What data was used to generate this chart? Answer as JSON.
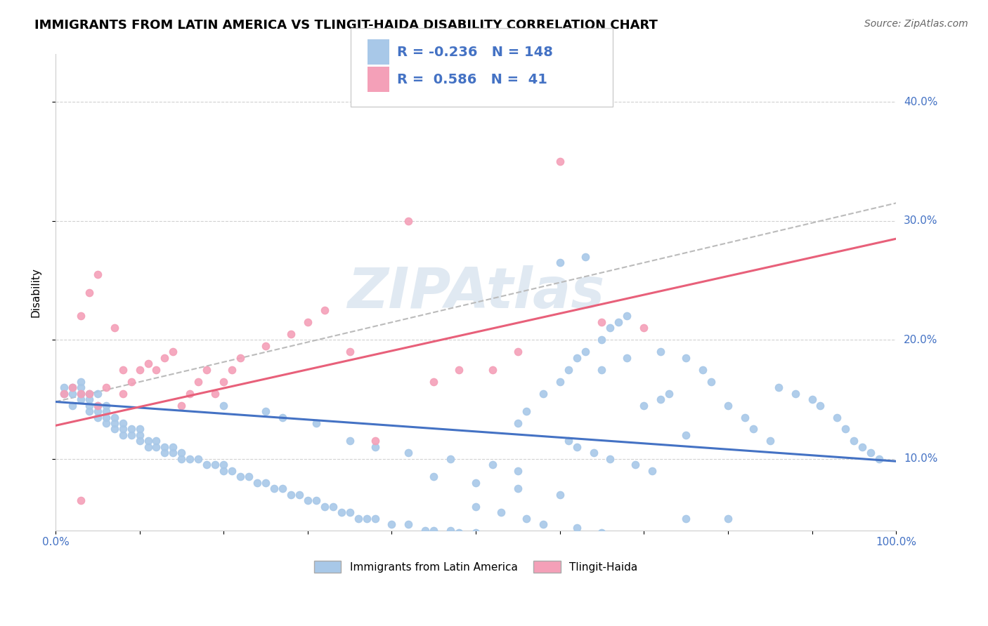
{
  "title": "IMMIGRANTS FROM LATIN AMERICA VS TLINGIT-HAIDA DISABILITY CORRELATION CHART",
  "source": "Source: ZipAtlas.com",
  "ylabel": "Disability",
  "xlim": [
    0.0,
    1.0
  ],
  "ylim": [
    0.04,
    0.44
  ],
  "yticks": [
    0.1,
    0.2,
    0.3,
    0.4
  ],
  "ytick_labels": [
    "10.0%",
    "20.0%",
    "30.0%",
    "40.0%"
  ],
  "xticks": [
    0.0,
    0.1,
    0.2,
    0.3,
    0.4,
    0.5,
    0.6,
    0.7,
    0.8,
    0.9,
    1.0
  ],
  "xtick_labels": [
    "0.0%",
    "",
    "",
    "",
    "",
    "",
    "",
    "",
    "",
    "",
    "100.0%"
  ],
  "blue_color": "#a8c8e8",
  "pink_color": "#f4a0b8",
  "blue_line_color": "#4472c4",
  "pink_line_color": "#e8607a",
  "gray_dash_color": "#bbbbbb",
  "legend_blue_r": "-0.236",
  "legend_blue_n": "148",
  "legend_pink_r": "0.586",
  "legend_pink_n": "41",
  "legend_label_blue": "Immigrants from Latin America",
  "legend_label_pink": "Tlingit-Haida",
  "watermark": "ZIPAtlas",
  "blue_scatter_x": [
    0.01,
    0.01,
    0.02,
    0.02,
    0.02,
    0.03,
    0.03,
    0.03,
    0.03,
    0.04,
    0.04,
    0.04,
    0.04,
    0.05,
    0.05,
    0.05,
    0.05,
    0.06,
    0.06,
    0.06,
    0.06,
    0.07,
    0.07,
    0.07,
    0.08,
    0.08,
    0.08,
    0.09,
    0.09,
    0.1,
    0.1,
    0.1,
    0.11,
    0.11,
    0.12,
    0.12,
    0.13,
    0.13,
    0.14,
    0.14,
    0.15,
    0.15,
    0.16,
    0.17,
    0.18,
    0.19,
    0.2,
    0.2,
    0.21,
    0.22,
    0.23,
    0.24,
    0.25,
    0.26,
    0.27,
    0.28,
    0.29,
    0.3,
    0.31,
    0.32,
    0.33,
    0.34,
    0.35,
    0.36,
    0.37,
    0.38,
    0.4,
    0.42,
    0.44,
    0.45,
    0.47,
    0.48,
    0.5,
    0.52,
    0.54,
    0.55,
    0.56,
    0.58,
    0.6,
    0.61,
    0.62,
    0.63,
    0.65,
    0.66,
    0.67,
    0.68,
    0.7,
    0.72,
    0.73,
    0.75,
    0.6,
    0.63,
    0.65,
    0.68,
    0.72,
    0.75,
    0.77,
    0.78,
    0.8,
    0.82,
    0.83,
    0.85,
    0.86,
    0.88,
    0.9,
    0.91,
    0.93,
    0.94,
    0.95,
    0.96,
    0.97,
    0.98,
    0.35,
    0.38,
    0.42,
    0.47,
    0.52,
    0.55,
    0.2,
    0.25,
    0.27,
    0.31,
    0.45,
    0.5,
    0.55,
    0.6,
    0.61,
    0.62,
    0.64,
    0.66,
    0.69,
    0.71,
    0.5,
    0.53,
    0.56,
    0.58,
    0.62,
    0.65,
    0.75,
    0.8
  ],
  "blue_scatter_y": [
    0.155,
    0.16,
    0.145,
    0.155,
    0.16,
    0.15,
    0.155,
    0.16,
    0.165,
    0.14,
    0.145,
    0.15,
    0.155,
    0.135,
    0.14,
    0.145,
    0.155,
    0.13,
    0.135,
    0.14,
    0.145,
    0.125,
    0.13,
    0.135,
    0.12,
    0.125,
    0.13,
    0.12,
    0.125,
    0.115,
    0.12,
    0.125,
    0.11,
    0.115,
    0.11,
    0.115,
    0.105,
    0.11,
    0.105,
    0.11,
    0.1,
    0.105,
    0.1,
    0.1,
    0.095,
    0.095,
    0.09,
    0.095,
    0.09,
    0.085,
    0.085,
    0.08,
    0.08,
    0.075,
    0.075,
    0.07,
    0.07,
    0.065,
    0.065,
    0.06,
    0.06,
    0.055,
    0.055,
    0.05,
    0.05,
    0.05,
    0.045,
    0.045,
    0.04,
    0.04,
    0.04,
    0.038,
    0.038,
    0.035,
    0.035,
    0.13,
    0.14,
    0.155,
    0.165,
    0.175,
    0.185,
    0.19,
    0.2,
    0.21,
    0.215,
    0.22,
    0.145,
    0.15,
    0.155,
    0.12,
    0.265,
    0.27,
    0.175,
    0.185,
    0.19,
    0.185,
    0.175,
    0.165,
    0.145,
    0.135,
    0.125,
    0.115,
    0.16,
    0.155,
    0.15,
    0.145,
    0.135,
    0.125,
    0.115,
    0.11,
    0.105,
    0.1,
    0.115,
    0.11,
    0.105,
    0.1,
    0.095,
    0.09,
    0.145,
    0.14,
    0.135,
    0.13,
    0.085,
    0.08,
    0.075,
    0.07,
    0.115,
    0.11,
    0.105,
    0.1,
    0.095,
    0.09,
    0.06,
    0.055,
    0.05,
    0.045,
    0.042,
    0.038,
    0.05,
    0.05
  ],
  "pink_scatter_x": [
    0.01,
    0.02,
    0.03,
    0.03,
    0.04,
    0.04,
    0.05,
    0.05,
    0.06,
    0.07,
    0.08,
    0.08,
    0.09,
    0.1,
    0.11,
    0.12,
    0.13,
    0.14,
    0.15,
    0.16,
    0.17,
    0.18,
    0.19,
    0.2,
    0.21,
    0.22,
    0.25,
    0.28,
    0.3,
    0.32,
    0.35,
    0.38,
    0.42,
    0.45,
    0.48,
    0.52,
    0.55,
    0.6,
    0.65,
    0.7,
    0.03
  ],
  "pink_scatter_y": [
    0.155,
    0.16,
    0.155,
    0.22,
    0.24,
    0.155,
    0.145,
    0.255,
    0.16,
    0.21,
    0.175,
    0.155,
    0.165,
    0.175,
    0.18,
    0.175,
    0.185,
    0.19,
    0.145,
    0.155,
    0.165,
    0.175,
    0.155,
    0.165,
    0.175,
    0.185,
    0.195,
    0.205,
    0.215,
    0.225,
    0.19,
    0.115,
    0.3,
    0.165,
    0.175,
    0.175,
    0.19,
    0.35,
    0.215,
    0.21,
    0.065
  ],
  "blue_trend_x": [
    0.0,
    1.0
  ],
  "blue_trend_y": [
    0.148,
    0.098
  ],
  "pink_trend_x": [
    0.0,
    1.0
  ],
  "pink_trend_y": [
    0.128,
    0.285
  ],
  "gray_trend_x": [
    0.0,
    1.0
  ],
  "gray_trend_y": [
    0.148,
    0.315
  ]
}
